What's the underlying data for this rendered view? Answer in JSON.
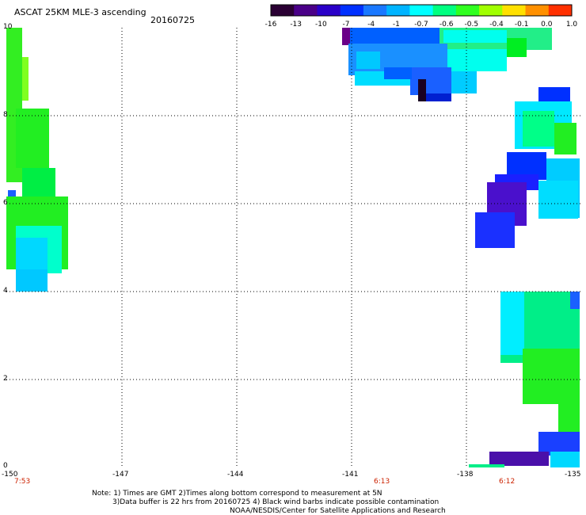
{
  "title": "ASCAT 25KM MLE-3 ascending",
  "date": "20160725",
  "colorbar": {
    "ticks": [
      "-16",
      "-13",
      "-10",
      "-7",
      "-4",
      "-1",
      "-0.7",
      "-0.6",
      "-0.5",
      "-0.4",
      "-0.1",
      "0.0",
      "1.0"
    ],
    "colors": [
      "#2a0033",
      "#4a0088",
      "#2a00c8",
      "#0030ff",
      "#1a78ff",
      "#00b4ff",
      "#00ffff",
      "#00ff80",
      "#30ff20",
      "#a0ff00",
      "#ffe000",
      "#ff9000",
      "#ff3000"
    ]
  },
  "axes": {
    "y_ticks": [
      "10",
      "8",
      "6",
      "4",
      "2",
      "0"
    ],
    "x_ticks": [
      "-150",
      "-147",
      "-144",
      "-141",
      "-138",
      "-135"
    ]
  },
  "times": [
    "7:53",
    "6:13",
    "6:12"
  ],
  "notes": {
    "line1": "Note: 1) Times are GMT 2)Times along bottom correspond to measurement at 5N",
    "line2": "3)Data buffer is 22 hrs from 20160725 4) Black wind barbs indicate possible contamination",
    "line3": "NOAA/NESDIS/Center for Satellite Applications and Research"
  }
}
